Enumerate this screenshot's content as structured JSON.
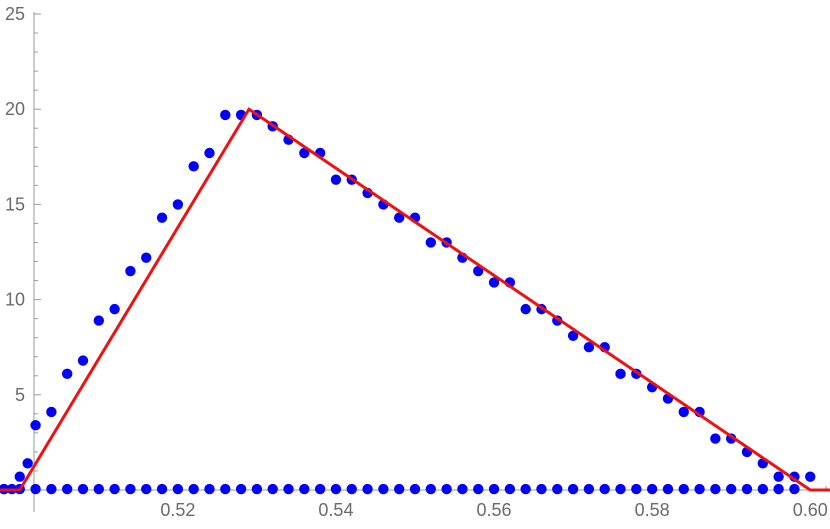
{
  "chart_data": {
    "type": "scatter",
    "xlim": [
      0.4975,
      0.6025
    ],
    "ylim": [
      0,
      25
    ],
    "grid": false,
    "x_ticks": [
      0.52,
      0.54,
      0.56,
      0.58,
      0.6
    ],
    "x_tick_labels": [
      "0.52",
      "0.54",
      "0.56",
      "0.58",
      "0.60"
    ],
    "y_ticks": [
      5,
      10,
      15,
      20,
      25
    ],
    "y_tick_labels": [
      "5",
      "10",
      "15",
      "20",
      "25"
    ],
    "series": [
      {
        "kind": "points",
        "color": "#0000ff",
        "x": [
          0.498,
          0.499,
          0.5,
          0.501,
          0.502,
          0.504,
          0.506,
          0.508,
          0.51,
          0.512,
          0.514,
          0.516,
          0.518,
          0.52,
          0.522,
          0.524,
          0.526,
          0.528,
          0.53,
          0.532,
          0.534,
          0.536,
          0.538,
          0.54,
          0.542,
          0.544,
          0.546,
          0.548,
          0.55,
          0.552,
          0.554,
          0.556,
          0.558,
          0.56,
          0.562,
          0.564,
          0.566,
          0.568,
          0.57,
          0.572,
          0.574,
          0.576,
          0.578,
          0.58,
          0.582,
          0.584,
          0.586,
          0.588,
          0.59,
          0.592,
          0.594,
          0.596,
          0.598,
          0.6
        ],
        "y": [
          0.05,
          0.05,
          0.7,
          1.4,
          3.4,
          4.1,
          6.1,
          6.8,
          8.9,
          9.5,
          11.5,
          12.2,
          14.3,
          15.0,
          17.0,
          17.7,
          19.7,
          19.7,
          19.7,
          19.1,
          18.4,
          17.7,
          17.7,
          16.3,
          16.3,
          15.6,
          15.0,
          14.3,
          14.3,
          13.0,
          13.0,
          12.2,
          11.5,
          10.9,
          10.9,
          9.5,
          9.5,
          8.9,
          8.1,
          7.5,
          7.5,
          6.1,
          6.1,
          5.4,
          4.8,
          4.1,
          4.1,
          2.7,
          2.7,
          2.0,
          1.4,
          0.7,
          0.7,
          0.7
        ]
      },
      {
        "kind": "points",
        "color": "#0000ff",
        "x": [
          0.498,
          0.5,
          0.502,
          0.504,
          0.506,
          0.508,
          0.51,
          0.512,
          0.514,
          0.516,
          0.518,
          0.52,
          0.522,
          0.524,
          0.526,
          0.528,
          0.53,
          0.532,
          0.534,
          0.536,
          0.538,
          0.54,
          0.542,
          0.544,
          0.546,
          0.548,
          0.55,
          0.552,
          0.554,
          0.556,
          0.558,
          0.56,
          0.562,
          0.564,
          0.566,
          0.568,
          0.57,
          0.572,
          0.574,
          0.576,
          0.578,
          0.58,
          0.582,
          0.584,
          0.586,
          0.588,
          0.59,
          0.592,
          0.594,
          0.596,
          0.598
        ],
        "y": [
          0.05,
          0.05,
          0.05,
          0.05,
          0.05,
          0.05,
          0.05,
          0.05,
          0.05,
          0.05,
          0.05,
          0.05,
          0.05,
          0.05,
          0.05,
          0.05,
          0.05,
          0.05,
          0.05,
          0.05,
          0.05,
          0.05,
          0.05,
          0.05,
          0.05,
          0.05,
          0.05,
          0.05,
          0.05,
          0.05,
          0.05,
          0.05,
          0.05,
          0.05,
          0.05,
          0.05,
          0.05,
          0.05,
          0.05,
          0.05,
          0.05,
          0.05,
          0.05,
          0.05,
          0.05,
          0.05,
          0.05,
          0.05,
          0.05,
          0.05,
          0.05
        ]
      },
      {
        "kind": "line",
        "color": "#ee1111",
        "x": [
          0.4975,
          0.5,
          0.529,
          0.6,
          0.6025
        ],
        "y": [
          0,
          0,
          20,
          0,
          0
        ]
      }
    ]
  }
}
